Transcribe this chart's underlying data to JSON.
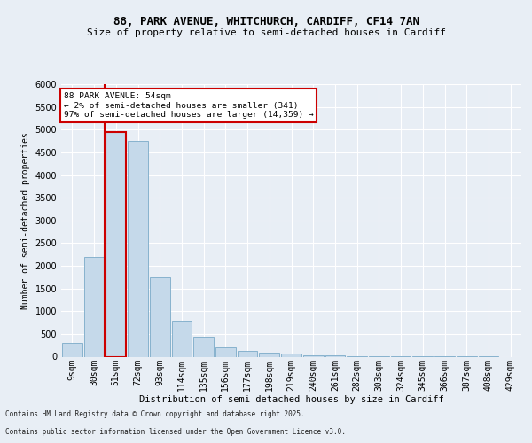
{
  "title_line1": "88, PARK AVENUE, WHITCHURCH, CARDIFF, CF14 7AN",
  "title_line2": "Size of property relative to semi-detached houses in Cardiff",
  "xlabel": "Distribution of semi-detached houses by size in Cardiff",
  "ylabel": "Number of semi-detached properties",
  "footer_line1": "Contains HM Land Registry data © Crown copyright and database right 2025.",
  "footer_line2": "Contains public sector information licensed under the Open Government Licence v3.0.",
  "subject_label": "88 PARK AVENUE: 54sqm",
  "annotation_line2": "← 2% of semi-detached houses are smaller (341)",
  "annotation_line3": "97% of semi-detached houses are larger (14,359) →",
  "bin_labels": [
    "9sqm",
    "30sqm",
    "51sqm",
    "72sqm",
    "93sqm",
    "114sqm",
    "135sqm",
    "156sqm",
    "177sqm",
    "198sqm",
    "219sqm",
    "240sqm",
    "261sqm",
    "282sqm",
    "303sqm",
    "324sqm",
    "345sqm",
    "366sqm",
    "387sqm",
    "408sqm",
    "429sqm"
  ],
  "bar_values": [
    300,
    2200,
    4950,
    4750,
    1750,
    800,
    430,
    200,
    120,
    90,
    60,
    35,
    20,
    10,
    8,
    5,
    3,
    2,
    1,
    1,
    0
  ],
  "bar_color": "#c5d9ea",
  "bar_edge_color": "#7aaac8",
  "vline_color": "#cc0000",
  "vline_bar_index": 2,
  "ylim": [
    0,
    6000
  ],
  "yticks": [
    0,
    500,
    1000,
    1500,
    2000,
    2500,
    3000,
    3500,
    4000,
    4500,
    5000,
    5500,
    6000
  ],
  "background_color": "#e8eef5",
  "plot_bg_color": "#e8eef5",
  "grid_color": "#ffffff",
  "annotation_box_facecolor": "#ffffff",
  "annotation_box_edgecolor": "#cc0000",
  "title_fontsize": 9,
  "subtitle_fontsize": 8,
  "ylabel_fontsize": 7,
  "xlabel_fontsize": 7.5,
  "tick_fontsize": 7,
  "annot_fontsize": 6.8,
  "footer_fontsize": 5.5
}
